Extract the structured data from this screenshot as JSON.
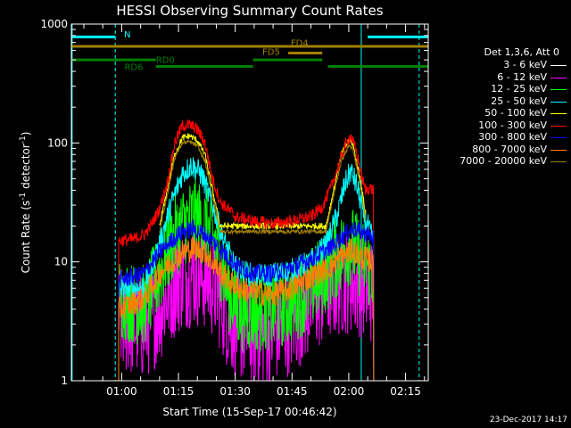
{
  "chart_data": {
    "type": "line",
    "title": "HESSI Observing Summary Count Rates",
    "xlabel": "Start Time (15-Sep-17 00:46:42)",
    "ylabel_main": "Count Rate (s",
    "ylabel_sup1": "-1",
    "ylabel_mid": " detector",
    "ylabel_sup2": "-1",
    "ylabel_end": ")",
    "y_scale": "log",
    "x_range_min": [
      46.7,
      141.0
    ],
    "ylim": [
      1,
      1000
    ],
    "x_ticks": [
      {
        "value": 60,
        "label": "01:00"
      },
      {
        "value": 75,
        "label": "01:15"
      },
      {
        "value": 90,
        "label": "01:30"
      },
      {
        "value": 105,
        "label": "01:45"
      },
      {
        "value": 120,
        "label": "02:00"
      },
      {
        "value": 135,
        "label": "02:15"
      }
    ],
    "y_ticks": [
      {
        "value": 1,
        "label": "1"
      },
      {
        "value": 10,
        "label": "10"
      },
      {
        "value": 100,
        "label": "100"
      },
      {
        "value": 1000,
        "label": "1000"
      }
    ],
    "legend_title": "Det 1,3,6, Att 0",
    "legend_placement": "right",
    "data_start_min": 59.2,
    "data_end_min": 127.0,
    "series": [
      {
        "name": "3 - 6 keV",
        "color": "#000000",
        "noise": 0.75,
        "points": [
          [
            59.2,
            6
          ],
          [
            63,
            5.5
          ],
          [
            66,
            5.2
          ],
          [
            70,
            6
          ],
          [
            73,
            7.5
          ],
          [
            76,
            8.5
          ],
          [
            79,
            9
          ],
          [
            82,
            8.5
          ],
          [
            85,
            7
          ],
          [
            88,
            6
          ],
          [
            91,
            5.2
          ],
          [
            95,
            5
          ],
          [
            100,
            5.3
          ],
          [
            105,
            6
          ],
          [
            110,
            6.8
          ],
          [
            115,
            7.6
          ],
          [
            118,
            8.2
          ],
          [
            121,
            8.5
          ],
          [
            123,
            8
          ],
          [
            125,
            7
          ],
          [
            126.6,
            6.5
          ]
        ]
      },
      {
        "name": "6 - 12 keV",
        "color": "#ff00ff",
        "noise": 1.3,
        "points": [
          [
            59.2,
            3.2
          ],
          [
            63,
            3
          ],
          [
            66,
            2.8
          ],
          [
            70,
            4
          ],
          [
            73,
            6
          ],
          [
            76,
            7.5
          ],
          [
            79,
            8
          ],
          [
            82,
            7.5
          ],
          [
            85,
            6
          ],
          [
            88,
            3.5
          ],
          [
            91,
            2.8
          ],
          [
            95,
            2.5
          ],
          [
            100,
            2.6
          ],
          [
            105,
            3.2
          ],
          [
            110,
            4.5
          ],
          [
            115,
            6
          ],
          [
            118,
            6.8
          ],
          [
            121,
            7
          ],
          [
            123,
            6.5
          ],
          [
            125,
            6
          ],
          [
            126.6,
            5.5
          ]
        ]
      },
      {
        "name": "12 - 25 keV",
        "color": "#00ff00",
        "noise": 1.0,
        "points": [
          [
            59.2,
            5
          ],
          [
            63,
            4.5
          ],
          [
            66,
            4.3
          ],
          [
            70,
            8
          ],
          [
            73,
            14
          ],
          [
            76,
            20
          ],
          [
            79,
            24
          ],
          [
            82,
            20
          ],
          [
            85,
            14
          ],
          [
            88,
            6
          ],
          [
            91,
            4
          ],
          [
            95,
            3.8
          ],
          [
            100,
            4
          ],
          [
            105,
            4.5
          ],
          [
            110,
            6
          ],
          [
            115,
            9
          ],
          [
            118,
            12
          ],
          [
            120.5,
            14
          ],
          [
            122,
            12
          ],
          [
            124,
            10
          ],
          [
            126.6,
            8
          ]
        ]
      },
      {
        "name": "25 - 50 keV",
        "color": "#00ffff",
        "noise": 0.3,
        "points": [
          [
            59.2,
            6
          ],
          [
            63,
            6
          ],
          [
            66,
            6.2
          ],
          [
            70,
            14
          ],
          [
            73,
            30
          ],
          [
            76,
            55
          ],
          [
            78.5,
            65
          ],
          [
            81,
            55
          ],
          [
            84,
            30
          ],
          [
            87,
            15
          ],
          [
            90,
            9
          ],
          [
            95,
            7.5
          ],
          [
            100,
            7.8
          ],
          [
            105,
            8.5
          ],
          [
            110,
            10
          ],
          [
            114,
            14
          ],
          [
            117,
            25
          ],
          [
            119,
            45
          ],
          [
            120.5,
            58
          ],
          [
            122,
            45
          ],
          [
            124,
            25
          ],
          [
            125.5,
            18
          ],
          [
            126.6,
            15
          ]
        ]
      },
      {
        "name": "50 - 100 keV",
        "color": "#ffff00",
        "noise": 0.08,
        "points": [
          [
            70,
            20
          ],
          [
            72,
            40
          ],
          [
            74,
            80
          ],
          [
            76,
            110
          ],
          [
            78,
            115
          ],
          [
            80,
            105
          ],
          [
            82,
            80
          ],
          [
            84,
            40
          ],
          [
            86,
            20
          ],
          [
            114,
            20
          ],
          [
            116,
            40
          ],
          [
            118,
            80
          ],
          [
            120,
            105
          ],
          [
            121,
            100
          ],
          [
            123,
            50
          ],
          [
            124.5,
            25
          ]
        ]
      },
      {
        "name": "100 - 300 keV",
        "color": "#ff0000",
        "noise": 0.15,
        "points": [
          [
            59.2,
            15
          ],
          [
            63,
            15.5
          ],
          [
            66,
            17
          ],
          [
            68,
            21
          ],
          [
            70,
            28
          ],
          [
            72,
            45
          ],
          [
            74,
            100
          ],
          [
            76,
            140
          ],
          [
            78,
            142
          ],
          [
            80,
            130
          ],
          [
            82,
            100
          ],
          [
            84,
            50
          ],
          [
            86,
            32
          ],
          [
            88,
            28
          ],
          [
            90,
            24
          ],
          [
            95,
            22
          ],
          [
            100,
            21
          ],
          [
            105,
            22
          ],
          [
            110,
            24
          ],
          [
            113,
            29
          ],
          [
            115,
            40
          ],
          [
            117,
            60
          ],
          [
            119,
            95
          ],
          [
            120.5,
            115
          ],
          [
            122,
            85
          ],
          [
            123.5,
            50
          ],
          [
            124.5,
            40
          ],
          [
            125.5,
            42
          ],
          [
            126.6,
            40
          ]
        ]
      },
      {
        "name": "300 - 800 keV",
        "color": "#0000ff",
        "noise": 0.22,
        "points": [
          [
            59.2,
            7
          ],
          [
            63,
            7.5
          ],
          [
            66,
            8
          ],
          [
            70,
            12
          ],
          [
            73,
            15
          ],
          [
            76,
            18
          ],
          [
            79,
            19
          ],
          [
            82,
            17
          ],
          [
            85,
            14
          ],
          [
            88,
            11
          ],
          [
            91,
            9
          ],
          [
            95,
            8
          ],
          [
            100,
            8
          ],
          [
            105,
            9
          ],
          [
            110,
            10.5
          ],
          [
            115,
            13
          ],
          [
            118,
            16
          ],
          [
            121,
            19
          ],
          [
            123,
            18
          ],
          [
            125,
            17
          ],
          [
            126.6,
            16
          ]
        ]
      },
      {
        "name": "800 - 7000 keV",
        "color": "#ff8000",
        "noise": 0.3,
        "points": [
          [
            59.2,
            4
          ],
          [
            63,
            4.5
          ],
          [
            66,
            5
          ],
          [
            70,
            8
          ],
          [
            73,
            10
          ],
          [
            76,
            12
          ],
          [
            79,
            13
          ],
          [
            82,
            12
          ],
          [
            85,
            9
          ],
          [
            88,
            7
          ],
          [
            91,
            6
          ],
          [
            95,
            5.5
          ],
          [
            100,
            5.3
          ],
          [
            105,
            6
          ],
          [
            110,
            7.5
          ],
          [
            115,
            9
          ],
          [
            118,
            11
          ],
          [
            121,
            12.5
          ],
          [
            123,
            11
          ],
          [
            125,
            10.5
          ],
          [
            126.6,
            10
          ]
        ]
      },
      {
        "name": "7000 - 20000 keV",
        "color": "#a08000",
        "noise": 0.05,
        "points": [
          [
            70,
            18
          ],
          [
            72,
            36
          ],
          [
            74,
            75
          ],
          [
            76,
            100
          ],
          [
            78,
            102
          ],
          [
            80,
            95
          ],
          [
            82,
            70
          ],
          [
            84,
            35
          ],
          [
            86,
            18
          ],
          [
            114,
            18
          ],
          [
            116,
            36
          ],
          [
            118,
            70
          ],
          [
            120,
            95
          ],
          [
            121,
            90
          ],
          [
            123,
            45
          ],
          [
            124.5,
            22
          ]
        ]
      }
    ],
    "flag_bars": [
      {
        "name": "N",
        "color": "#00ffff",
        "y_value": 780,
        "segments": [
          [
            46.7,
            58.3
          ],
          [
            125.0,
            141.0
          ]
        ],
        "label": "N",
        "label_x": 61.5,
        "label_y_value": 830
      },
      {
        "name": "FD4",
        "color": "#a08000",
        "y_value": 650,
        "segments": [
          [
            46.7,
            141.0
          ]
        ],
        "label": "FD4",
        "label_x": 107,
        "label_y_value": 700
      },
      {
        "name": "FD5",
        "color": "#a08000",
        "y_value": 570,
        "segments": [
          [
            104,
            113
          ]
        ],
        "label": "FD5",
        "label_x": 99.5,
        "label_y_value": 590
      },
      {
        "name": "RD0",
        "color": "#008000",
        "y_value": 500,
        "segments": [
          [
            46.7,
            69.0
          ],
          [
            94.7,
            113.0
          ]
        ],
        "label": "RD0",
        "label_x": 71.5,
        "label_y_value": 505
      },
      {
        "name": "RD6",
        "color": "#008000",
        "y_value": 440,
        "segments": [
          [
            69.0,
            94.7
          ],
          [
            114.5,
            141.0
          ]
        ],
        "label": "RD6",
        "label_x": 63.2,
        "label_y_value": 440
      }
    ],
    "vlines": [
      {
        "x": 46.9,
        "color": "#00ffff",
        "style": "solid"
      },
      {
        "x": 58.3,
        "color": "#00ffff",
        "style": "dashed"
      },
      {
        "x": 123.3,
        "color": "#00ffff",
        "style": "solid"
      },
      {
        "x": 138.6,
        "color": "#00ffff",
        "style": "dashed"
      }
    ],
    "grid": false
  },
  "footer": {
    "timestamp": "23-Dec-2017 14:17"
  }
}
